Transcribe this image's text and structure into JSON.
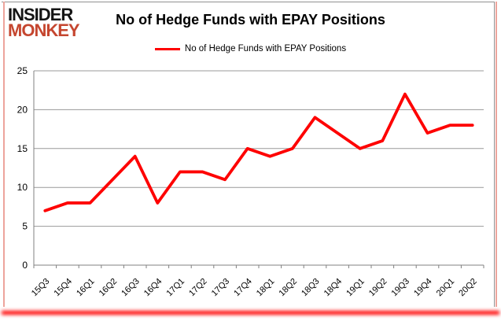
{
  "logo": {
    "line1": "INSIDER",
    "line2": "MONKEY"
  },
  "header": {
    "title": "No of Hedge Funds with EPAY Positions"
  },
  "legend": {
    "label": "No of Hedge Funds with EPAY Positions"
  },
  "colors": {
    "logo_black": "#151515",
    "logo_red": "#C5462F",
    "line_red": "#FE0000",
    "grid": "#999999",
    "axis": "#808080",
    "border_grey": "#909090",
    "border_pink": "#EDA49C",
    "glow": "#FF0000",
    "text": "#000000"
  },
  "chart_data": {
    "type": "line",
    "title": "No of Hedge Funds with EPAY Positions",
    "categories": [
      "15Q3",
      "15Q4",
      "16Q1",
      "16Q2",
      "16Q3",
      "16Q4",
      "17Q1",
      "17Q2",
      "17Q3",
      "17Q4",
      "18Q1",
      "18Q2",
      "18Q3",
      "18Q4",
      "19Q1",
      "19Q2",
      "19Q3",
      "19Q4",
      "20Q1",
      "20Q2"
    ],
    "series": [
      {
        "name": "No of Hedge Funds with EPAY Positions",
        "color": "#FE0000",
        "values": [
          7,
          8,
          8,
          11,
          14,
          8,
          12,
          12,
          11,
          15,
          14,
          15,
          19,
          17,
          15,
          16,
          22,
          17,
          18,
          18
        ]
      }
    ],
    "xlabel": "",
    "ylabel": "",
    "ylim": [
      0,
      25
    ],
    "yticks": [
      0,
      5,
      10,
      15,
      20,
      25
    ],
    "grid": true,
    "legend_position": "top"
  }
}
